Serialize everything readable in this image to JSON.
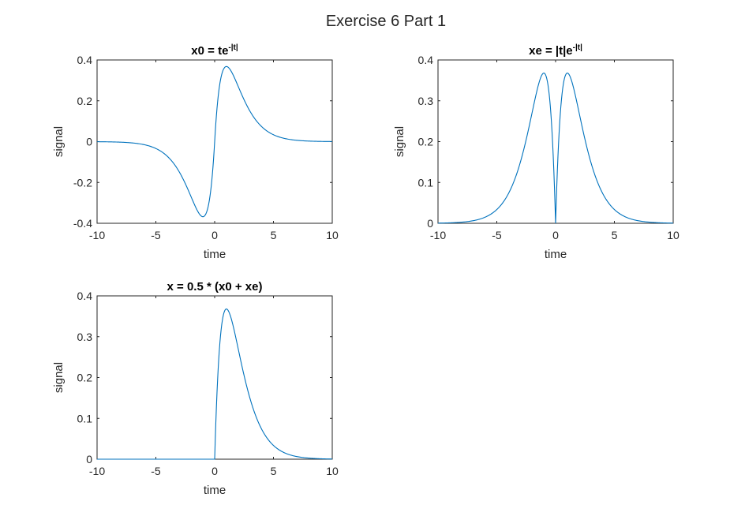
{
  "figure": {
    "title": "Exercise 6 Part 1",
    "background": "#ffffff",
    "line_color": "#0072bd"
  },
  "chart_data": [
    {
      "type": "line",
      "title_base": "x0 = te",
      "title_sup": "-|t|",
      "function": "t*exp(-|t|)",
      "xlabel": "time",
      "ylabel": "signal",
      "xlim": [
        -10,
        10
      ],
      "ylim": [
        -0.4,
        0.4
      ],
      "x_ticks": [
        "-10",
        "-5",
        "0",
        "5",
        "10"
      ],
      "y_ticks": [
        "-0.4",
        "-0.2",
        "0",
        "0.2",
        "0.4"
      ],
      "series": [
        {
          "points": [
            [
              -10,
              -0.0005
            ],
            [
              -8,
              -0.0027
            ],
            [
              -6,
              -0.0149
            ],
            [
              -5,
              -0.0337
            ],
            [
              -4,
              -0.0733
            ],
            [
              -3,
              -0.1494
            ],
            [
              -2,
              -0.2707
            ],
            [
              -1.5,
              -0.3347
            ],
            [
              -1,
              -0.3679
            ],
            [
              -0.5,
              -0.3033
            ],
            [
              0,
              0
            ],
            [
              0.5,
              0.3033
            ],
            [
              1,
              0.3679
            ],
            [
              1.5,
              0.3347
            ],
            [
              2,
              0.2707
            ],
            [
              3,
              0.1494
            ],
            [
              4,
              0.0733
            ],
            [
              5,
              0.0337
            ],
            [
              6,
              0.0149
            ],
            [
              8,
              0.0027
            ],
            [
              10,
              0.0005
            ]
          ]
        }
      ]
    },
    {
      "type": "line",
      "title_base": "xe = |t|e",
      "title_sup": "-|t|",
      "function": "|t|*exp(-|t|)",
      "xlabel": "time",
      "ylabel": "signal",
      "xlim": [
        -10,
        10
      ],
      "ylim": [
        0,
        0.4
      ],
      "x_ticks": [
        "-10",
        "-5",
        "0",
        "5",
        "10"
      ],
      "y_ticks": [
        "0",
        "0.1",
        "0.2",
        "0.3",
        "0.4"
      ],
      "series": [
        {
          "points": [
            [
              -10,
              0.0005
            ],
            [
              -8,
              0.0027
            ],
            [
              -6,
              0.0149
            ],
            [
              -5,
              0.0337
            ],
            [
              -4,
              0.0733
            ],
            [
              -3,
              0.1494
            ],
            [
              -2,
              0.2707
            ],
            [
              -1.5,
              0.3347
            ],
            [
              -1,
              0.3679
            ],
            [
              -0.5,
              0.3033
            ],
            [
              0,
              0
            ],
            [
              0.5,
              0.3033
            ],
            [
              1,
              0.3679
            ],
            [
              1.5,
              0.3347
            ],
            [
              2,
              0.2707
            ],
            [
              3,
              0.1494
            ],
            [
              4,
              0.0733
            ],
            [
              5,
              0.0337
            ],
            [
              6,
              0.0149
            ],
            [
              8,
              0.0027
            ],
            [
              10,
              0.0005
            ]
          ]
        }
      ]
    },
    {
      "type": "line",
      "title_base": "x = 0.5 * (x0 + xe)",
      "title_sup": "",
      "function": "0.5*(x0+xe)",
      "xlabel": "time",
      "ylabel": "signal",
      "xlim": [
        -10,
        10
      ],
      "ylim": [
        0,
        0.4
      ],
      "x_ticks": [
        "-10",
        "-5",
        "0",
        "5",
        "10"
      ],
      "y_ticks": [
        "0",
        "0.1",
        "0.2",
        "0.3",
        "0.4"
      ],
      "series": [
        {
          "points": [
            [
              -10,
              0
            ],
            [
              -5,
              0
            ],
            [
              0,
              0
            ],
            [
              0.5,
              0.3033
            ],
            [
              1,
              0.3679
            ],
            [
              1.5,
              0.3347
            ],
            [
              2,
              0.2707
            ],
            [
              3,
              0.1494
            ],
            [
              4,
              0.0733
            ],
            [
              5,
              0.0337
            ],
            [
              6,
              0.0149
            ],
            [
              8,
              0.0027
            ],
            [
              10,
              0.0005
            ]
          ]
        }
      ]
    }
  ]
}
